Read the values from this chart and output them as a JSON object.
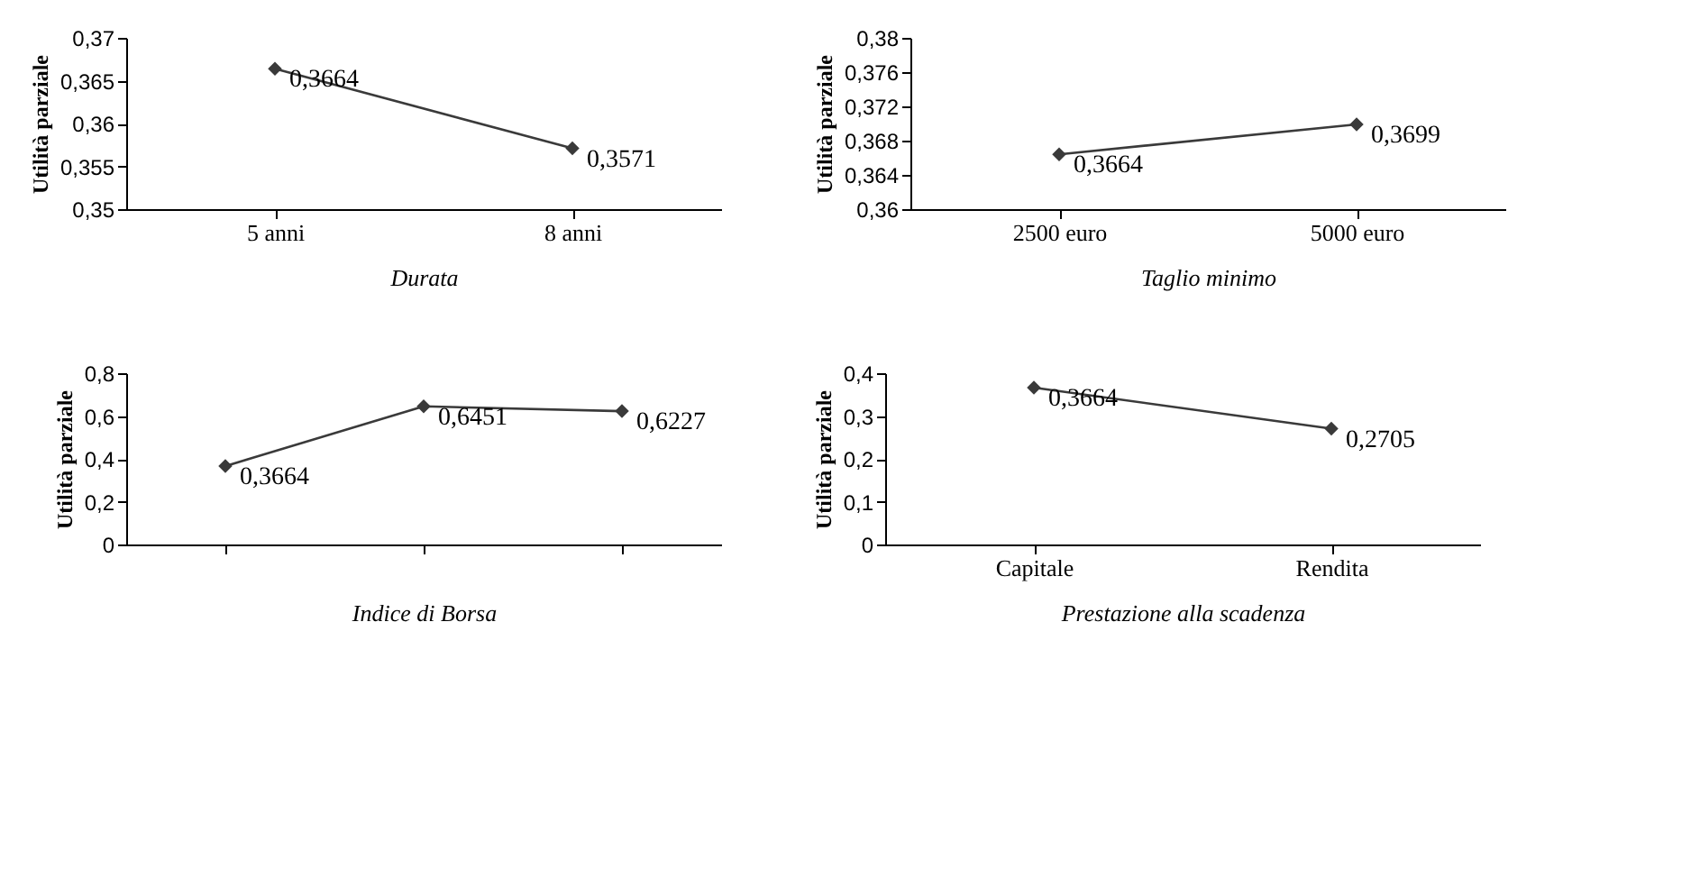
{
  "chart_data": [
    {
      "type": "line",
      "ylabel": "Utilità parziale",
      "xlabel": "Durata",
      "categories": [
        "5 anni",
        "8 anni"
      ],
      "values": [
        0.3664,
        0.3571
      ],
      "value_labels": [
        "0,3664",
        "0,3571"
      ],
      "color": "#3a3a3a",
      "marker": "diamond",
      "line_style": "solid",
      "grid": false,
      "ylim": [
        0.35,
        0.37
      ],
      "yticks": [
        {
          "value": 0.35,
          "label": "0,35"
        },
        {
          "value": 0.355,
          "label": "0,355"
        },
        {
          "value": 0.36,
          "label": "0,36"
        },
        {
          "value": 0.365,
          "label": "0,365"
        },
        {
          "value": 0.37,
          "label": "0,37"
        }
      ]
    },
    {
      "type": "line",
      "ylabel": "Utilità parziale",
      "xlabel": "Taglio minimo",
      "categories": [
        "2500 euro",
        "5000 euro"
      ],
      "values": [
        0.3664,
        0.3699
      ],
      "value_labels": [
        "0,3664",
        "0,3699"
      ],
      "color": "#3a3a3a",
      "marker": "diamond",
      "line_style": "solid",
      "grid": false,
      "ylim": [
        0.36,
        0.38
      ],
      "yticks": [
        {
          "value": 0.36,
          "label": "0,36"
        },
        {
          "value": 0.364,
          "label": "0,364"
        },
        {
          "value": 0.368,
          "label": "0,368"
        },
        {
          "value": 0.372,
          "label": "0,372"
        },
        {
          "value": 0.376,
          "label": "0,376"
        },
        {
          "value": 0.38,
          "label": "0,38"
        }
      ]
    },
    {
      "type": "line",
      "ylabel": "Utilità parziale",
      "xlabel": "Indice di Borsa",
      "categories": [
        null,
        null,
        null
      ],
      "values": [
        0.3664,
        0.6451,
        0.6227
      ],
      "value_labels": [
        "0,3664",
        "0,6451",
        "0,6227"
      ],
      "color": "#3a3a3a",
      "marker": "diamond",
      "line_style": "solid",
      "grid": false,
      "ylim": [
        0,
        0.8
      ],
      "yticks": [
        0,
        {
          "value": 0.2,
          "label": "0,2"
        },
        {
          "value": 0.4,
          "label": "0,4"
        },
        {
          "value": 0.6,
          "label": "0,6"
        },
        {
          "value": 0.8,
          "label": "0,8"
        }
      ]
    },
    {
      "type": "line",
      "ylabel": "Utilità parziale",
      "xlabel": "Prestazione alla scadenza",
      "categories": [
        "Capitale",
        "Rendita"
      ],
      "values": [
        0.3664,
        0.2705
      ],
      "value_labels": [
        "0,3664",
        "0,2705"
      ],
      "color": "#3a3a3a",
      "marker": "diamond",
      "line_style": "solid",
      "grid": false,
      "ylim": [
        0,
        0.4
      ],
      "yticks": [
        0,
        {
          "value": 0.1,
          "label": "0,1"
        },
        {
          "value": 0.2,
          "label": "0,2"
        },
        {
          "value": 0.3,
          "label": "0,3"
        },
        {
          "value": 0.4,
          "label": "0,4"
        }
      ]
    }
  ]
}
